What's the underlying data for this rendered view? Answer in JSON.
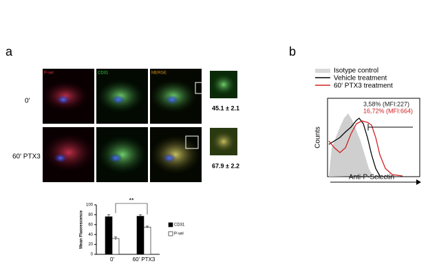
{
  "panel_a": {
    "label": "a",
    "channels": [
      "P-sel",
      "CD31",
      "MERGE"
    ],
    "rows": [
      "0'",
      "60' PTX3"
    ],
    "inset_values": [
      "45.1 ± 2.1",
      "67.9 ± 2.2"
    ]
  },
  "chart_data": {
    "type": "bar",
    "ylabel": "Mean Fluorescence",
    "categories": [
      "0'",
      "60' PTX3"
    ],
    "series": [
      {
        "name": "CD31",
        "color": "#000000",
        "values": [
          76,
          77
        ],
        "errors": [
          4,
          3
        ]
      },
      {
        "name": "P-sel",
        "color": "#ffffff",
        "values": [
          32,
          55
        ],
        "errors": [
          3,
          2
        ]
      }
    ],
    "ylim": [
      0,
      100
    ],
    "yticks": [
      0,
      20,
      40,
      60,
      80,
      100
    ],
    "annotation": "**"
  },
  "panel_b": {
    "label": "b",
    "legend": [
      "Isotype control",
      "Vehicle treatment",
      "60' PTX3 treatment"
    ],
    "annotations": [
      "3,58% (MFI:227)",
      "16,72% (MFI:664)"
    ],
    "ylabel": "Counts",
    "xlabel": "Anti-P-Selectin"
  }
}
